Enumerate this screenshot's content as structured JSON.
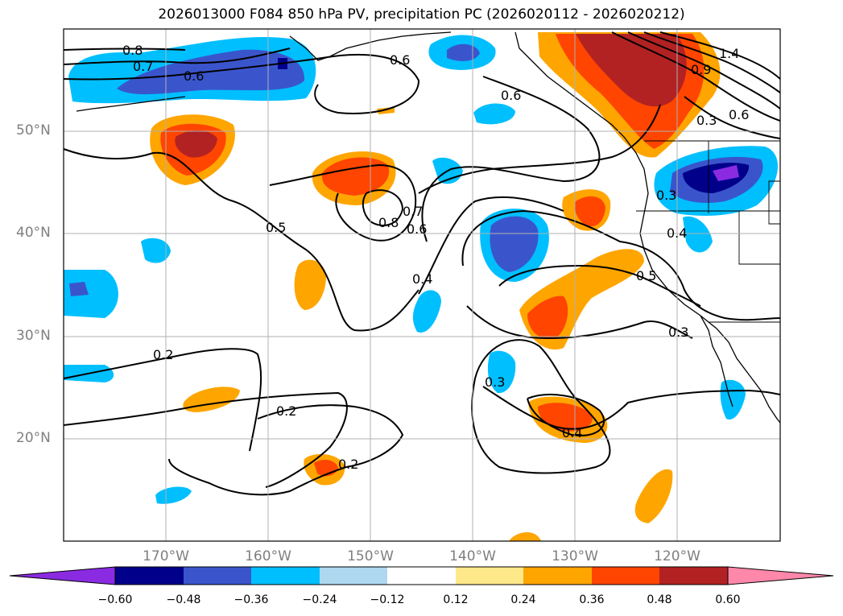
{
  "title": "2026013000 F084 850 hPa PV, precipitation PC (2026020112 - 2026020212)",
  "map": {
    "lat_labels": [
      "50°N",
      "40°N",
      "30°N",
      "20°N"
    ],
    "lon_labels": [
      "170°W",
      "160°W",
      "150°W",
      "140°W",
      "130°W",
      "120°W"
    ],
    "contour_labels": [
      "0.8",
      "0.7",
      "0.6",
      "0.6",
      "0.6",
      "0.5",
      "0.8",
      "0.7",
      "0.6",
      "0.4",
      "0.5",
      "0.4",
      "0.3",
      "0.3",
      "0.3",
      "0.2",
      "0.2",
      "0.2",
      "0.4",
      "0.3",
      "0.6",
      "1.4",
      "0.9"
    ]
  },
  "colorbar": {
    "ticks": [
      "−0.60",
      "−0.48",
      "−0.36",
      "−0.24",
      "−0.12",
      "0.12",
      "0.24",
      "0.36",
      "0.48",
      "0.60"
    ],
    "colors": [
      "#8a2be2",
      "#00008b",
      "#3a55cc",
      "#00bfff",
      "#add8f0",
      "#ffffff",
      "#ffe88a",
      "#ffa500",
      "#ff4500",
      "#b22222",
      "#ff88aa"
    ]
  }
}
